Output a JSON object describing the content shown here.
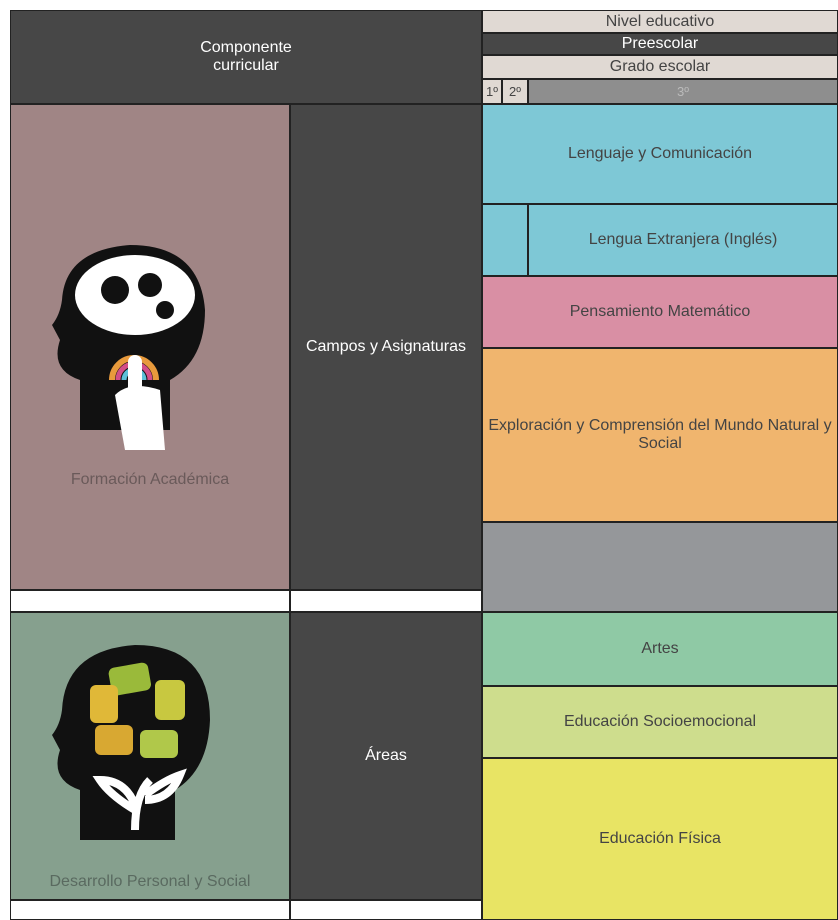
{
  "header": {
    "component": "Componente curricular",
    "level_label": "Nivel educativo",
    "level": "Preescolar",
    "grade_label": "Grado escolar",
    "grades": [
      "1º",
      "2º",
      "3º"
    ]
  },
  "sections": [
    {
      "component": "Formación Académica",
      "group": "Campos y Asignaturas",
      "subjects": [
        "Lenguaje y Comunicación",
        "Lengua Extranjera (Inglés)",
        "Pensamiento Matemático",
        "Exploración y Comprensión del Mundo Natural y Social"
      ]
    },
    {
      "component": "Desarrollo Personal y Social",
      "group": "Áreas",
      "subjects": [
        "Artes",
        "Educación Socioemocional",
        "Educación Física"
      ]
    }
  ]
}
